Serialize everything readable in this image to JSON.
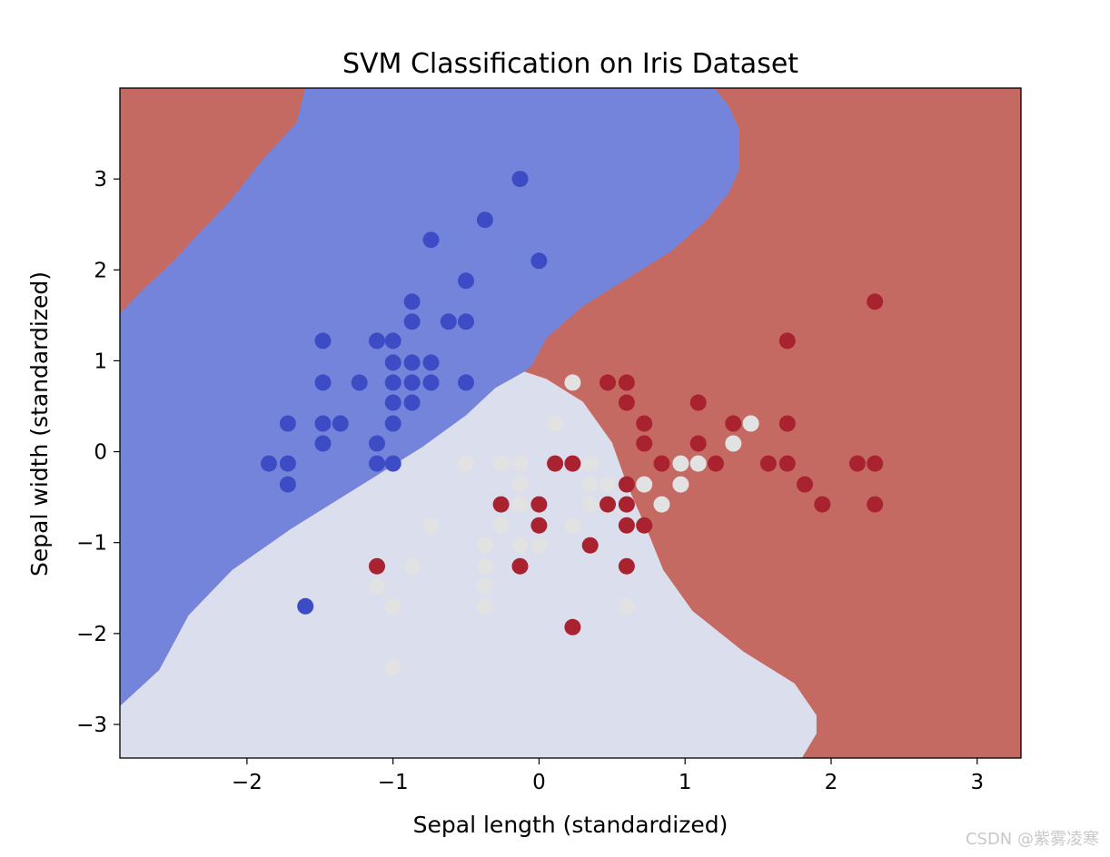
{
  "chart_data": {
    "type": "scatter",
    "title": "SVM Classification on Iris Dataset",
    "xlabel": "Sepal length (standardized)",
    "ylabel": "Sepal width (standardized)",
    "xlim": [
      -2.87,
      3.3
    ],
    "ylim": [
      -3.37,
      4.0
    ],
    "xticks": [
      -2,
      -1,
      0,
      1,
      2,
      3
    ],
    "yticks": [
      -3,
      -2,
      -1,
      0,
      1,
      2,
      3
    ],
    "xtick_labels": [
      "−2",
      "−1",
      "0",
      "1",
      "2",
      "3"
    ],
    "ytick_labels": [
      "−3",
      "−2",
      "−1",
      "0",
      "1",
      "2",
      "3"
    ],
    "grid": false,
    "legend": "none",
    "decision_regions": [
      {
        "class": "class-0",
        "color": "#7584db",
        "polygon": [
          [
            -2.87,
            1.52
          ],
          [
            -2.7,
            1.8
          ],
          [
            -2.5,
            2.1
          ],
          [
            -2.32,
            2.42
          ],
          [
            -2.12,
            2.75
          ],
          [
            -1.9,
            3.2
          ],
          [
            -1.66,
            3.62
          ],
          [
            -1.6,
            4.0
          ],
          [
            -0.5,
            4.0
          ],
          [
            0.8,
            4.0
          ],
          [
            1.2,
            4.0
          ],
          [
            1.3,
            3.8
          ],
          [
            1.37,
            3.55
          ],
          [
            1.37,
            3.1
          ],
          [
            1.3,
            2.85
          ],
          [
            1.15,
            2.55
          ],
          [
            0.9,
            2.2
          ],
          [
            0.6,
            1.9
          ],
          [
            0.3,
            1.6
          ],
          [
            0.05,
            1.25
          ],
          [
            -0.05,
            0.95
          ],
          [
            -0.1,
            0.88
          ],
          [
            -0.3,
            0.7
          ],
          [
            -0.5,
            0.4
          ],
          [
            -0.8,
            0.05
          ],
          [
            -1.2,
            -0.35
          ],
          [
            -1.7,
            -0.85
          ],
          [
            -2.1,
            -1.3
          ],
          [
            -2.4,
            -1.8
          ],
          [
            -2.6,
            -2.4
          ],
          [
            -2.87,
            -2.8
          ]
        ]
      },
      {
        "class": "class-1",
        "color": "#dadeed",
        "polygon": [
          [
            -0.1,
            0.88
          ],
          [
            0.05,
            0.8
          ],
          [
            0.3,
            0.55
          ],
          [
            0.5,
            0.1
          ],
          [
            0.6,
            -0.35
          ],
          [
            0.75,
            -0.9
          ],
          [
            0.85,
            -1.3
          ],
          [
            1.05,
            -1.75
          ],
          [
            1.4,
            -2.2
          ],
          [
            1.75,
            -2.55
          ],
          [
            1.9,
            -2.9
          ],
          [
            1.9,
            -3.1
          ],
          [
            1.8,
            -3.37
          ],
          [
            -2.87,
            -3.37
          ],
          [
            -2.87,
            -2.8
          ],
          [
            -2.6,
            -2.4
          ],
          [
            -2.4,
            -1.8
          ],
          [
            -2.1,
            -1.3
          ],
          [
            -1.7,
            -0.85
          ],
          [
            -1.2,
            -0.35
          ],
          [
            -0.8,
            0.05
          ],
          [
            -0.5,
            0.4
          ],
          [
            -0.3,
            0.7
          ]
        ]
      }
    ],
    "background_region": {
      "class": "class-2",
      "color": "#c46a63"
    },
    "series": [
      {
        "color": "#3d4cc4",
        "points": [
          [
            -0.13,
            3.0
          ],
          [
            -0.37,
            2.55
          ],
          [
            -0.74,
            2.33
          ],
          [
            0.0,
            2.1
          ],
          [
            -0.5,
            1.88
          ],
          [
            -0.87,
            1.65
          ],
          [
            -0.62,
            1.43
          ],
          [
            -0.5,
            1.43
          ],
          [
            -0.87,
            1.43
          ],
          [
            -1.48,
            1.22
          ],
          [
            -1.11,
            1.22
          ],
          [
            -1.0,
            1.22
          ],
          [
            -1.0,
            0.98
          ],
          [
            -0.87,
            0.98
          ],
          [
            -0.74,
            0.98
          ],
          [
            -1.48,
            0.76
          ],
          [
            -1.23,
            0.76
          ],
          [
            -1.0,
            0.76
          ],
          [
            -0.87,
            0.76
          ],
          [
            -0.74,
            0.76
          ],
          [
            -0.5,
            0.76
          ],
          [
            -1.0,
            0.54
          ],
          [
            -0.87,
            0.54
          ],
          [
            -1.72,
            0.31
          ],
          [
            -1.48,
            0.31
          ],
          [
            -1.36,
            0.31
          ],
          [
            -1.0,
            0.31
          ],
          [
            -1.48,
            0.09
          ],
          [
            -1.11,
            0.09
          ],
          [
            -1.85,
            -0.13
          ],
          [
            -1.72,
            -0.13
          ],
          [
            -1.11,
            -0.13
          ],
          [
            -1.0,
            -0.13
          ],
          [
            -1.72,
            -0.36
          ],
          [
            -1.6,
            -1.7
          ]
        ]
      },
      {
        "color": "#e2e2e2",
        "points": [
          [
            0.23,
            0.76
          ],
          [
            0.11,
            0.31
          ],
          [
            -0.5,
            -0.13
          ],
          [
            -0.26,
            -0.13
          ],
          [
            -0.13,
            -0.13
          ],
          [
            0.35,
            -0.13
          ],
          [
            -0.13,
            -0.36
          ],
          [
            0.35,
            -0.36
          ],
          [
            0.47,
            -0.36
          ],
          [
            0.72,
            -0.36
          ],
          [
            -0.13,
            -0.58
          ],
          [
            0.35,
            -0.58
          ],
          [
            0.84,
            -0.58
          ],
          [
            -0.74,
            -0.81
          ],
          [
            -0.26,
            -0.81
          ],
          [
            0.23,
            -0.81
          ],
          [
            -0.37,
            -1.03
          ],
          [
            -0.13,
            -1.03
          ],
          [
            0.0,
            -1.03
          ],
          [
            -0.87,
            -1.26
          ],
          [
            -0.37,
            -1.26
          ],
          [
            0.6,
            -1.26
          ],
          [
            -1.11,
            -1.48
          ],
          [
            -0.37,
            -1.48
          ],
          [
            -1.0,
            -1.7
          ],
          [
            -0.37,
            -1.7
          ],
          [
            0.6,
            -1.7
          ],
          [
            -1.0,
            -2.37
          ],
          [
            0.97,
            -0.13
          ],
          [
            1.09,
            -0.13
          ],
          [
            0.97,
            -0.36
          ],
          [
            1.33,
            0.09
          ],
          [
            1.45,
            0.31
          ]
        ]
      },
      {
        "color": "#a9222f",
        "points": [
          [
            2.3,
            1.65
          ],
          [
            1.7,
            1.22
          ],
          [
            0.47,
            0.76
          ],
          [
            0.6,
            0.76
          ],
          [
            0.6,
            0.54
          ],
          [
            1.09,
            0.54
          ],
          [
            0.72,
            0.31
          ],
          [
            1.33,
            0.31
          ],
          [
            1.7,
            0.31
          ],
          [
            0.72,
            0.09
          ],
          [
            1.09,
            0.09
          ],
          [
            0.11,
            -0.13
          ],
          [
            0.23,
            -0.13
          ],
          [
            0.84,
            -0.13
          ],
          [
            1.21,
            -0.13
          ],
          [
            1.57,
            -0.13
          ],
          [
            1.7,
            -0.13
          ],
          [
            2.18,
            -0.13
          ],
          [
            2.3,
            -0.13
          ],
          [
            0.6,
            -0.36
          ],
          [
            1.82,
            -0.36
          ],
          [
            -0.26,
            -0.58
          ],
          [
            0.0,
            -0.58
          ],
          [
            0.47,
            -0.58
          ],
          [
            0.6,
            -0.58
          ],
          [
            1.94,
            -0.58
          ],
          [
            2.3,
            -0.58
          ],
          [
            0.0,
            -0.81
          ],
          [
            0.6,
            -0.81
          ],
          [
            0.72,
            -0.81
          ],
          [
            0.35,
            -1.03
          ],
          [
            -1.11,
            -1.26
          ],
          [
            -0.13,
            -1.26
          ],
          [
            0.6,
            -1.26
          ],
          [
            0.23,
            -1.93
          ]
        ]
      }
    ]
  },
  "watermark": "CSDN @紫雾凌寒"
}
